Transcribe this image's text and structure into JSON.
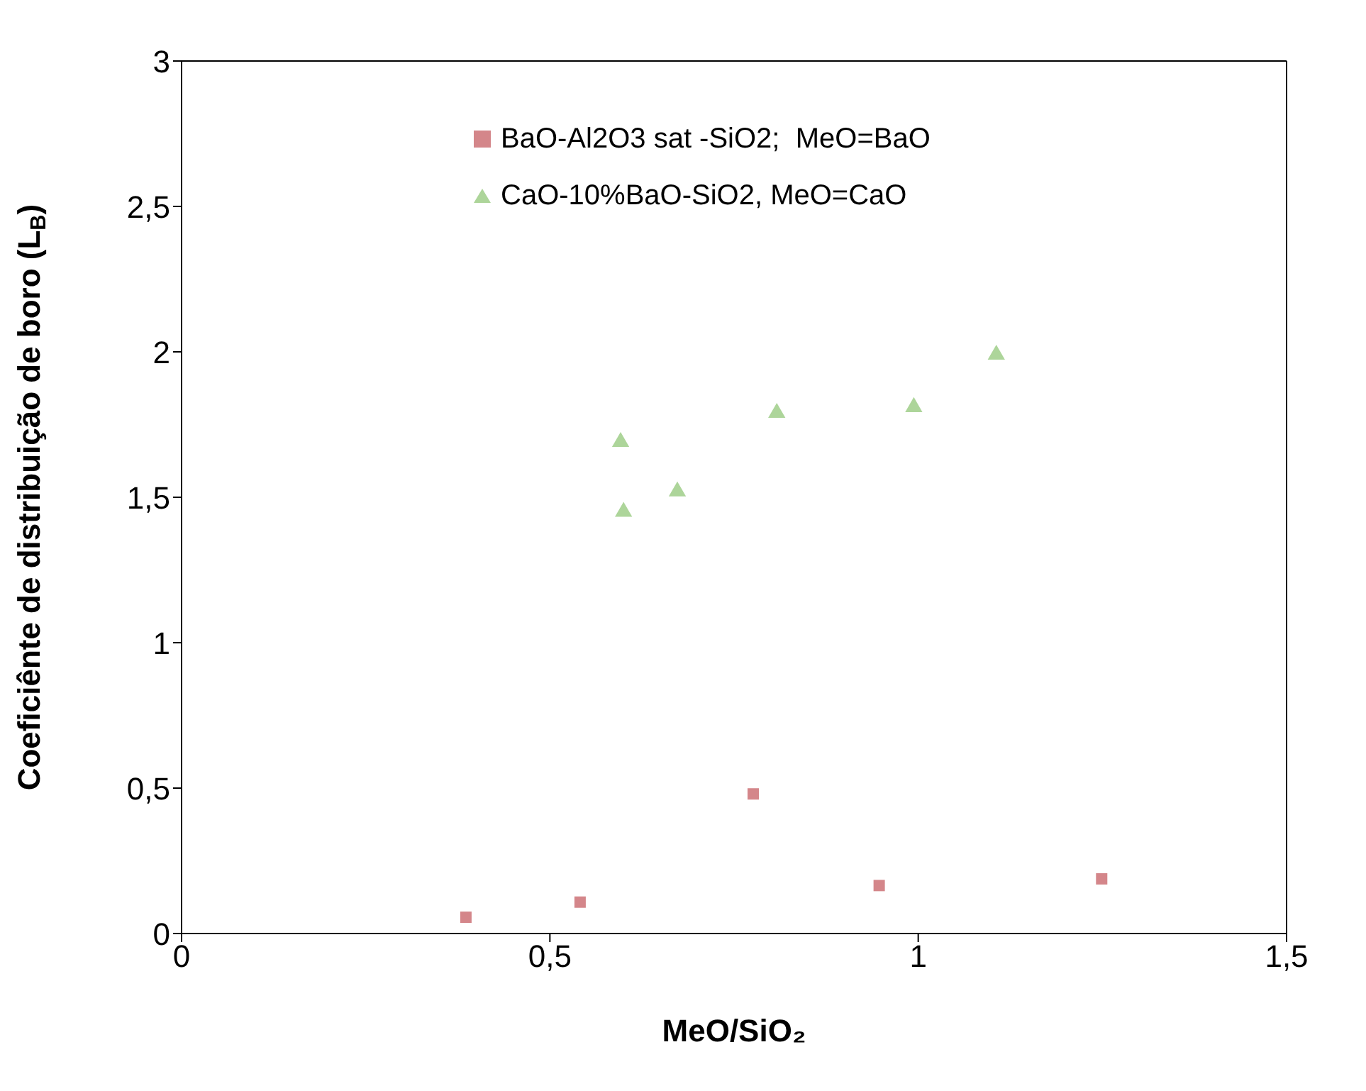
{
  "chart_data": {
    "type": "scatter",
    "xlabel": "MeO/SiO₂",
    "ylabel": "Coeficiênte de distribuição de boro (L$_{B}$)",
    "series": [
      {
        "name": "BaO-Al2O3 sat -SiO2;  MeO=BaO",
        "color": "#d4868a",
        "marker": "square",
        "x": [
          0.386,
          0.541,
          0.776,
          0.947,
          1.249
        ],
        "values": [
          0.056,
          0.108,
          0.48,
          0.165,
          0.188
        ]
      },
      {
        "name": "CaO-10%BaO-SiO2, MeO=CaO",
        "color": "#add59a",
        "marker": "triangle",
        "x": [
          0.596,
          0.6,
          0.673,
          0.808,
          0.994,
          1.106
        ],
        "values": [
          1.69,
          1.45,
          1.52,
          1.79,
          1.81,
          1.99
        ]
      }
    ],
    "xlim": [
      0,
      1.5
    ],
    "xticks": [
      0,
      {
        "value": 0.5,
        "label": "0,5"
      },
      1,
      {
        "value": 1.5,
        "label": "1,5"
      }
    ],
    "ylim": [
      0,
      3
    ],
    "yticks": [
      0,
      {
        "value": 0.5,
        "label": "0,5"
      },
      1,
      {
        "value": 1.5,
        "label": "1,5"
      },
      2,
      {
        "value": 2.5,
        "label": "2,5"
      },
      3
    ],
    "legend": "top"
  }
}
